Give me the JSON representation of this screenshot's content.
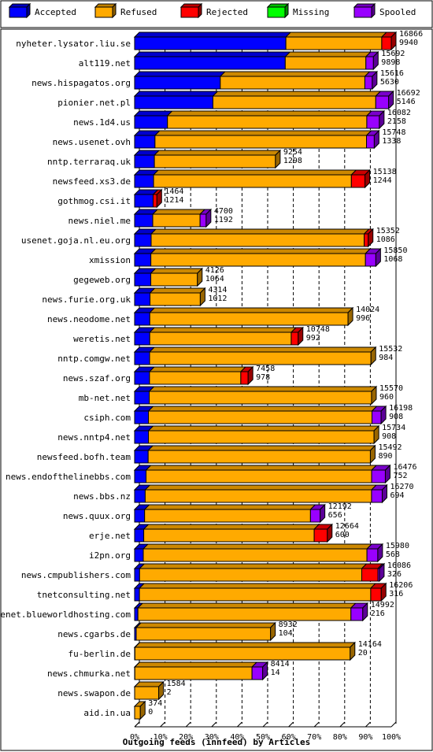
{
  "legend": [
    {
      "label": "Accepted",
      "color": "#0000ff"
    },
    {
      "label": "Refused",
      "color": "#ffaa00"
    },
    {
      "label": "Rejected",
      "color": "#ff0000"
    },
    {
      "label": "Missing",
      "color": "#00ff00"
    },
    {
      "label": "Spooled",
      "color": "#9900ff"
    }
  ],
  "chart_data": {
    "type": "bar",
    "orientation": "horizontal",
    "stacked": true,
    "title": "Outgoing feeds (innfeed) by Articles",
    "xlabel": "Outgoing feeds (innfeed) by Articles",
    "x_ticks": [
      "0%",
      "10%",
      "20%",
      "30%",
      "40%",
      "50%",
      "60%",
      "70%",
      "80%",
      "90%",
      "100%"
    ],
    "grid": true,
    "x_max": 16866,
    "series_names": [
      "Accepted",
      "Refused",
      "Rejected",
      "Missing",
      "Spooled"
    ],
    "rows": [
      {
        "name": "nyheter.lysator.liu.se",
        "total": "16866",
        "accepted_label": "9940",
        "segments": [
          9940,
          6300,
          626,
          0,
          0
        ]
      },
      {
        "name": "alt119.net",
        "total": "15692",
        "accepted_label": "9898",
        "segments": [
          9898,
          5300,
          0,
          0,
          494
        ]
      },
      {
        "name": "news.hispagatos.org",
        "total": "15616",
        "accepted_label": "5630",
        "segments": [
          5630,
          9500,
          0,
          0,
          486
        ]
      },
      {
        "name": "pionier.net.pl",
        "total": "16692",
        "accepted_label": "5146",
        "segments": [
          5146,
          10700,
          0,
          0,
          846
        ]
      },
      {
        "name": "news.1d4.us",
        "total": "16082",
        "accepted_label": "2158",
        "segments": [
          2158,
          13100,
          0,
          0,
          824
        ]
      },
      {
        "name": "news.usenet.ovh",
        "total": "15748",
        "accepted_label": "1338",
        "segments": [
          1338,
          13900,
          0,
          0,
          510
        ]
      },
      {
        "name": "nntp.terraraq.uk",
        "total": "9254",
        "accepted_label": "1298",
        "segments": [
          1298,
          7956,
          0,
          0,
          0
        ]
      },
      {
        "name": "newsfeed.xs3.de",
        "total": "15138",
        "accepted_label": "1244",
        "segments": [
          1244,
          13000,
          894,
          0,
          0
        ]
      },
      {
        "name": "gothmog.csi.it",
        "total": "1464",
        "accepted_label": "1214",
        "segments": [
          1214,
          0,
          250,
          0,
          0
        ]
      },
      {
        "name": "news.niel.me",
        "total": "4700",
        "accepted_label": "1192",
        "segments": [
          1192,
          3108,
          0,
          0,
          400
        ]
      },
      {
        "name": "usenet.goja.nl.eu.org",
        "total": "15352",
        "accepted_label": "1086",
        "segments": [
          1086,
          14000,
          266,
          0,
          0
        ]
      },
      {
        "name": "xmission",
        "total": "15850",
        "accepted_label": "1068",
        "segments": [
          1068,
          14100,
          0,
          0,
          682
        ]
      },
      {
        "name": "gegeweb.org",
        "total": "4126",
        "accepted_label": "1064",
        "segments": [
          1064,
          3062,
          0,
          0,
          0
        ]
      },
      {
        "name": "news.furie.org.uk",
        "total": "4314",
        "accepted_label": "1012",
        "segments": [
          1012,
          3302,
          0,
          0,
          0
        ]
      },
      {
        "name": "news.neodome.net",
        "total": "14024",
        "accepted_label": "996",
        "segments": [
          996,
          13028,
          0,
          0,
          0
        ]
      },
      {
        "name": "weretis.net",
        "total": "10748",
        "accepted_label": "992",
        "segments": [
          992,
          9300,
          456,
          0,
          0
        ]
      },
      {
        "name": "nntp.comgw.net",
        "total": "15532",
        "accepted_label": "984",
        "segments": [
          984,
          14548,
          0,
          0,
          0
        ]
      },
      {
        "name": "news.szaf.org",
        "total": "7458",
        "accepted_label": "978",
        "segments": [
          978,
          6000,
          480,
          0,
          0
        ]
      },
      {
        "name": "mb-net.net",
        "total": "15570",
        "accepted_label": "960",
        "segments": [
          960,
          14610,
          0,
          0,
          0
        ]
      },
      {
        "name": "csiph.com",
        "total": "16198",
        "accepted_label": "908",
        "segments": [
          908,
          14690,
          0,
          0,
          600
        ]
      },
      {
        "name": "news.nntp4.net",
        "total": "15734",
        "accepted_label": "908",
        "segments": [
          908,
          14826,
          0,
          0,
          0
        ]
      },
      {
        "name": "newsfeed.bofh.team",
        "total": "15492",
        "accepted_label": "890",
        "segments": [
          890,
          14602,
          0,
          0,
          0
        ]
      },
      {
        "name": "news.endofthelinebbs.com",
        "total": "16476",
        "accepted_label": "752",
        "segments": [
          752,
          14824,
          0,
          0,
          900
        ]
      },
      {
        "name": "news.bbs.nz",
        "total": "16270",
        "accepted_label": "694",
        "segments": [
          694,
          14876,
          0,
          0,
          700
        ]
      },
      {
        "name": "news.quux.org",
        "total": "12192",
        "accepted_label": "656",
        "segments": [
          656,
          10900,
          0,
          0,
          636
        ]
      },
      {
        "name": "erje.net",
        "total": "12664",
        "accepted_label": "600",
        "segments": [
          600,
          11200,
          864,
          0,
          0
        ]
      },
      {
        "name": "i2pn.org",
        "total": "15980",
        "accepted_label": "568",
        "segments": [
          568,
          14700,
          0,
          0,
          712
        ]
      },
      {
        "name": "news.cmpublishers.com",
        "total": "16086",
        "accepted_label": "326",
        "segments": [
          326,
          14600,
          1060,
          0,
          100
        ]
      },
      {
        "name": "tnetconsulting.net",
        "total": "16206",
        "accepted_label": "316",
        "segments": [
          316,
          15200,
          690,
          0,
          0
        ]
      },
      {
        "name": "usenet.blueworldhosting.com",
        "total": "14992",
        "accepted_label": "216",
        "segments": [
          216,
          14000,
          0,
          0,
          776
        ]
      },
      {
        "name": "news.cgarbs.de",
        "total": "8932",
        "accepted_label": "104",
        "segments": [
          104,
          8828,
          0,
          0,
          0
        ]
      },
      {
        "name": "fu-berlin.de",
        "total": "14164",
        "accepted_label": "20",
        "segments": [
          20,
          14144,
          0,
          0,
          0
        ]
      },
      {
        "name": "news.chmurka.net",
        "total": "8414",
        "accepted_label": "14",
        "segments": [
          14,
          7700,
          0,
          0,
          700
        ]
      },
      {
        "name": "news.swapon.de",
        "total": "1584",
        "accepted_label": "2",
        "segments": [
          2,
          1582,
          0,
          0,
          0
        ]
      },
      {
        "name": "aid.in.ua",
        "total": "374",
        "accepted_label": "0",
        "segments": [
          0,
          374,
          0,
          0,
          0
        ]
      }
    ]
  }
}
